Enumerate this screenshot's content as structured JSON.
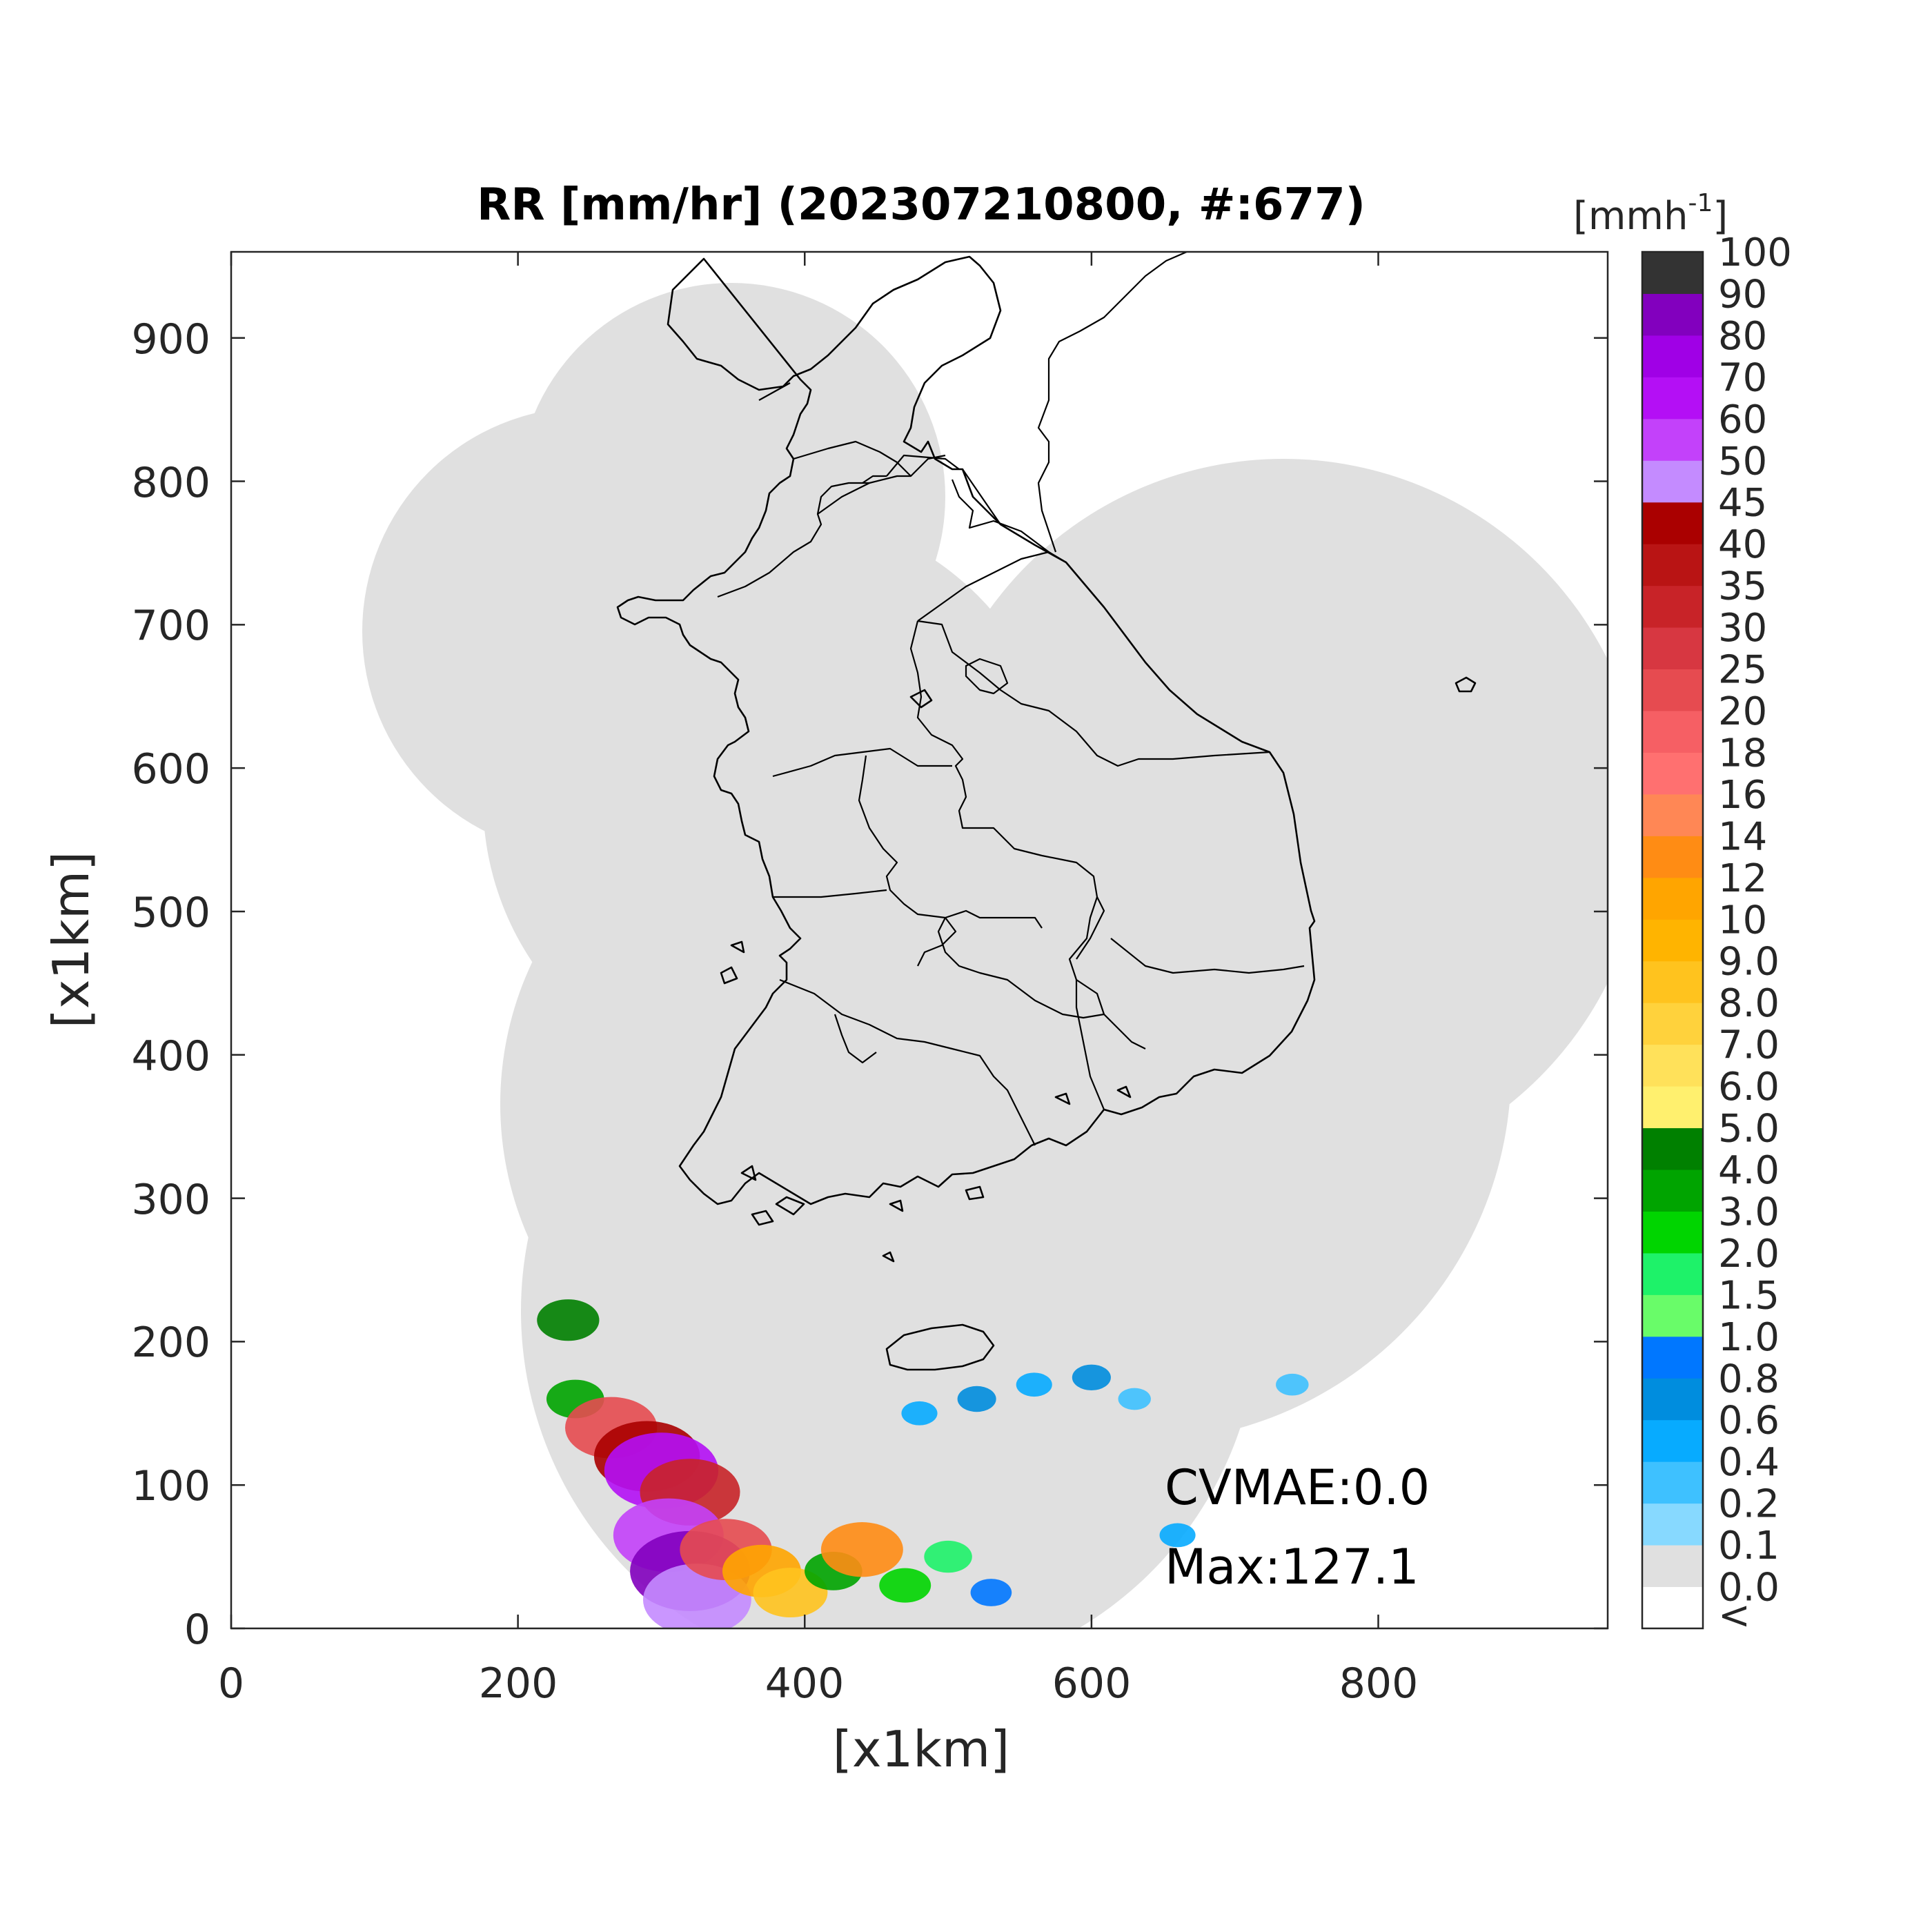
{
  "figure": {
    "title": "RR [mm/hr] (202307210800, #:677)",
    "xlabel": "[x1km]",
    "ylabel": "[x1km]",
    "xticks": [
      "0",
      "200",
      "400",
      "600",
      "800"
    ],
    "yticks": [
      "0",
      "100",
      "200",
      "300",
      "400",
      "500",
      "600",
      "700",
      "800",
      "900"
    ],
    "xlim": [
      0,
      960
    ],
    "ylim": [
      0,
      960
    ]
  },
  "annotations": {
    "cvmae": "CVMAE:0.0",
    "max": "Max:127.1"
  },
  "colorbar": {
    "unit_base": "[mmh",
    "unit_sup": "-1",
    "unit_close": "]",
    "under_label": "<",
    "labels": [
      "0.0",
      "0.1",
      "0.2",
      "0.4",
      "0.6",
      "0.8",
      "1.0",
      "1.5",
      "2.0",
      "3.0",
      "4.0",
      "5.0",
      "6.0",
      "7.0",
      "8.0",
      "9.0",
      "10",
      "12",
      "14",
      "16",
      "18",
      "20",
      "25",
      "30",
      "35",
      "40",
      "45",
      "50",
      "60",
      "70",
      "80",
      "90",
      "100"
    ],
    "colors": [
      "#ffffff",
      "#e0e0e0",
      "#87d9ff",
      "#3ec1ff",
      "#07abff",
      "#008dde",
      "#0077ff",
      "#69fc69",
      "#1ef269",
      "#00d500",
      "#00a400",
      "#008000",
      "#fff06e",
      "#ffe15a",
      "#ffd23c",
      "#ffc31e",
      "#ffb400",
      "#ffa500",
      "#ff8c14",
      "#ff8755",
      "#ff7070",
      "#f65f64",
      "#e64b50",
      "#d73741",
      "#c82328",
      "#b91414",
      "#aa0000",
      "#c48bff",
      "#c341fa",
      "#b40ff5",
      "#a000e6",
      "#8200be",
      "#333333"
    ]
  },
  "chart_data": {
    "type": "heatmap",
    "title": "RR [mm/hr] (202307210800, #:677)",
    "xlabel": "[x1km]",
    "ylabel": "[x1km]",
    "xlim": [
      0,
      960
    ],
    "ylim": [
      0,
      960
    ],
    "colorbar_unit": "mm h^-1",
    "max_value": 127.1,
    "cvmae": 0.0,
    "precipitation_cells": [
      {
        "x": 235,
        "y": 215,
        "intensity": 4.0
      },
      {
        "x": 240,
        "y": 160,
        "intensity": 3.0
      },
      {
        "x": 265,
        "y": 140,
        "intensity": 20
      },
      {
        "x": 290,
        "y": 120,
        "intensity": 40
      },
      {
        "x": 300,
        "y": 110,
        "intensity": 60
      },
      {
        "x": 320,
        "y": 95,
        "intensity": 30
      },
      {
        "x": 305,
        "y": 65,
        "intensity": 50
      },
      {
        "x": 320,
        "y": 40,
        "intensity": 80
      },
      {
        "x": 325,
        "y": 20,
        "intensity": 45
      },
      {
        "x": 345,
        "y": 55,
        "intensity": 20
      },
      {
        "x": 370,
        "y": 40,
        "intensity": 10
      },
      {
        "x": 390,
        "y": 25,
        "intensity": 8.0
      },
      {
        "x": 420,
        "y": 40,
        "intensity": 3.0
      },
      {
        "x": 440,
        "y": 55,
        "intensity": 12
      },
      {
        "x": 470,
        "y": 30,
        "intensity": 2.0
      },
      {
        "x": 500,
        "y": 50,
        "intensity": 1.5
      },
      {
        "x": 530,
        "y": 25,
        "intensity": 0.8
      },
      {
        "x": 480,
        "y": 150,
        "intensity": 0.4
      },
      {
        "x": 520,
        "y": 160,
        "intensity": 0.6
      },
      {
        "x": 560,
        "y": 170,
        "intensity": 0.4
      },
      {
        "x": 600,
        "y": 175,
        "intensity": 0.6
      },
      {
        "x": 630,
        "y": 160,
        "intensity": 0.2
      },
      {
        "x": 660,
        "y": 65,
        "intensity": 0.4
      },
      {
        "x": 740,
        "y": 170,
        "intensity": 0.2
      }
    ]
  }
}
